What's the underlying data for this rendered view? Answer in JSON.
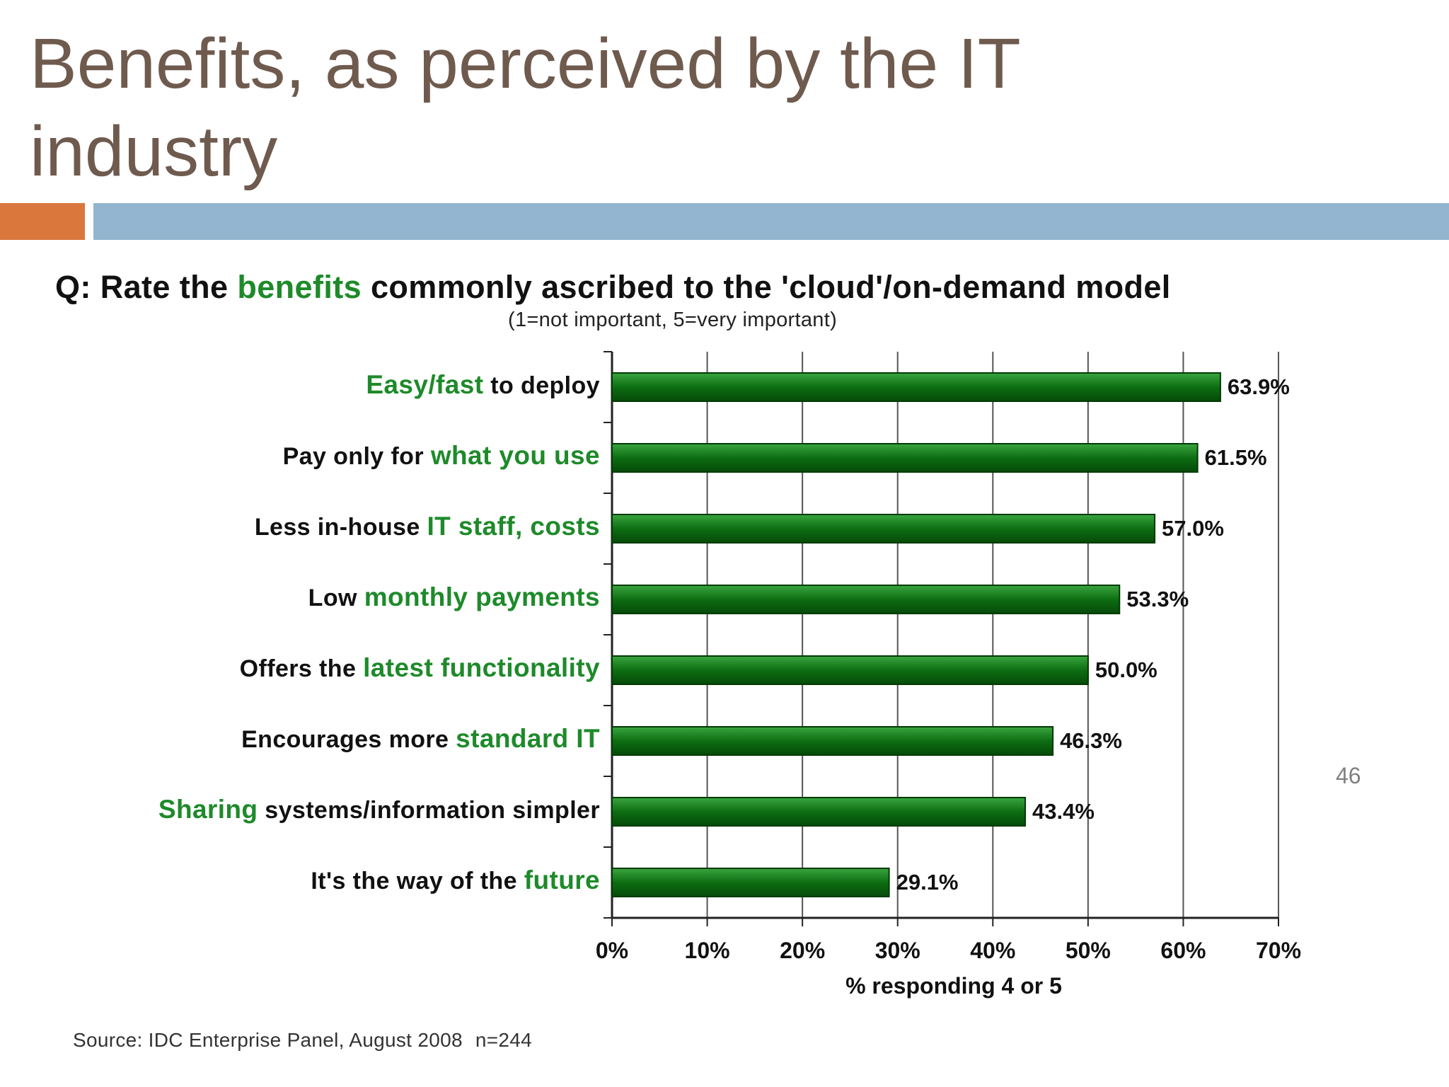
{
  "slide": {
    "title_line1": "Benefits, as perceived by the IT",
    "title_line2": "industry",
    "page_number": "46",
    "colors": {
      "title": "#6f5a4e",
      "accent_orange": "#d9773c",
      "accent_blue": "#93b5cf"
    }
  },
  "chart_data": {
    "type": "bar",
    "orientation": "horizontal",
    "title_prefix": "Q: Rate the ",
    "title_highlight": "benefits",
    "title_suffix": " commonly ascribed to the 'cloud'/on-demand model",
    "subtitle": "(1=not important, 5=very important)",
    "categories": [
      {
        "plain_before": "",
        "highlight": "Easy/fast",
        "plain_after": " to deploy"
      },
      {
        "plain_before": "Pay only for ",
        "highlight": "what you use",
        "plain_after": ""
      },
      {
        "plain_before": "Less in-house ",
        "highlight": "IT staff, costs",
        "plain_after": ""
      },
      {
        "plain_before": "Low ",
        "highlight": "monthly payments",
        "plain_after": ""
      },
      {
        "plain_before": "Offers the ",
        "highlight": "latest functionality",
        "plain_after": ""
      },
      {
        "plain_before": "Encourages more ",
        "highlight": "standard IT",
        "plain_after": ""
      },
      {
        "plain_before": "",
        "highlight": "Sharing",
        "plain_after": " systems/information simpler"
      },
      {
        "plain_before": "It's the way of the ",
        "highlight": "future",
        "plain_after": ""
      }
    ],
    "values": [
      63.9,
      61.5,
      57.0,
      53.3,
      50.0,
      46.3,
      43.4,
      29.1
    ],
    "value_labels": [
      "63.9%",
      "61.5%",
      "57.0%",
      "53.3%",
      "50.0%",
      "46.3%",
      "43.4%",
      "29.1%"
    ],
    "xlim": [
      0,
      70
    ],
    "xticks": [
      0,
      10,
      20,
      30,
      40,
      50,
      60,
      70
    ],
    "xtick_labels": [
      "0%",
      "10%",
      "20%",
      "30%",
      "40%",
      "50%",
      "60%",
      "70%"
    ],
    "xlabel": "% responding 4 or 5",
    "grid": "vertical",
    "bar_color": "#0d6e12",
    "highlight_color": "#1e8a2a",
    "source": "Source: IDC Enterprise Panel, August 2008",
    "sample_size": "n=244"
  }
}
